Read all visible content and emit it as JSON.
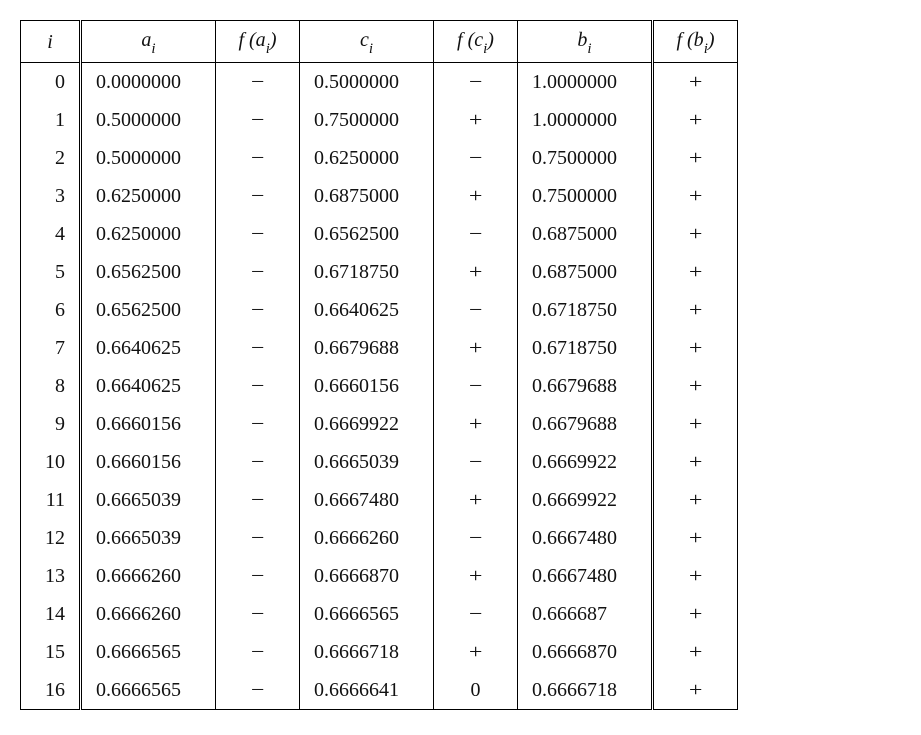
{
  "table": {
    "headers": {
      "i": "i",
      "a": "a",
      "fa_prefix": "f (a",
      "fa_suffix": ")",
      "c": "c",
      "fc_prefix": "f (c",
      "fc_suffix": ")",
      "b": "b",
      "fb_prefix": "f (b",
      "fb_suffix": ")",
      "sub": "i"
    },
    "rows": [
      {
        "i": "0",
        "a": "0.0000000",
        "fa": "−",
        "c": "0.5000000",
        "fc": "−",
        "b": "1.0000000",
        "fb": "+"
      },
      {
        "i": "1",
        "a": "0.5000000",
        "fa": "−",
        "c": "0.7500000",
        "fc": "+",
        "b": "1.0000000",
        "fb": "+"
      },
      {
        "i": "2",
        "a": "0.5000000",
        "fa": "−",
        "c": "0.6250000",
        "fc": "−",
        "b": "0.7500000",
        "fb": "+"
      },
      {
        "i": "3",
        "a": "0.6250000",
        "fa": "−",
        "c": "0.6875000",
        "fc": "+",
        "b": "0.7500000",
        "fb": "+"
      },
      {
        "i": "4",
        "a": "0.6250000",
        "fa": "−",
        "c": "0.6562500",
        "fc": "−",
        "b": "0.6875000",
        "fb": "+"
      },
      {
        "i": "5",
        "a": "0.6562500",
        "fa": "−",
        "c": "0.6718750",
        "fc": "+",
        "b": "0.6875000",
        "fb": "+"
      },
      {
        "i": "6",
        "a": "0.6562500",
        "fa": "−",
        "c": "0.6640625",
        "fc": "−",
        "b": "0.6718750",
        "fb": "+"
      },
      {
        "i": "7",
        "a": "0.6640625",
        "fa": "−",
        "c": "0.6679688",
        "fc": "+",
        "b": "0.6718750",
        "fb": "+"
      },
      {
        "i": "8",
        "a": "0.6640625",
        "fa": "−",
        "c": "0.6660156",
        "fc": "−",
        "b": "0.6679688",
        "fb": "+"
      },
      {
        "i": "9",
        "a": "0.6660156",
        "fa": "−",
        "c": "0.6669922",
        "fc": "+",
        "b": "0.6679688",
        "fb": "+"
      },
      {
        "i": "10",
        "a": "0.6660156",
        "fa": "−",
        "c": "0.6665039",
        "fc": "−",
        "b": "0.6669922",
        "fb": "+"
      },
      {
        "i": "11",
        "a": "0.6665039",
        "fa": "−",
        "c": "0.6667480",
        "fc": "+",
        "b": "0.6669922",
        "fb": "+"
      },
      {
        "i": "12",
        "a": "0.6665039",
        "fa": "−",
        "c": "0.6666260",
        "fc": "−",
        "b": "0.6667480",
        "fb": "+"
      },
      {
        "i": "13",
        "a": "0.6666260",
        "fa": "−",
        "c": "0.6666870",
        "fc": "+",
        "b": "0.6667480",
        "fb": "+"
      },
      {
        "i": "14",
        "a": "0.6666260",
        "fa": "−",
        "c": "0.6666565",
        "fc": "−",
        "b": "0.666687",
        "fb": "+"
      },
      {
        "i": "15",
        "a": "0.6666565",
        "fa": "−",
        "c": "0.6666718",
        "fc": "+",
        "b": "0.6666870",
        "fb": "+"
      },
      {
        "i": "16",
        "a": "0.6666565",
        "fa": "−",
        "c": "0.6666641",
        "fc": "0",
        "b": "0.6666718",
        "fb": "+"
      }
    ],
    "style": {
      "font_family": "Times New Roman",
      "font_size_pt": 15,
      "text_color": "#111111",
      "border_color": "#000000",
      "background_color": "#ffffff"
    }
  }
}
